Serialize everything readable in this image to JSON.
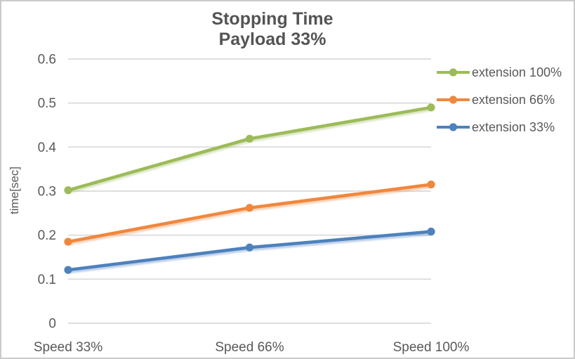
{
  "chart_data": {
    "type": "line",
    "title": "Stopping Time",
    "subtitle": "Payload 33%",
    "ylabel": "time[sec]",
    "xlabel": "",
    "categories": [
      "Speed 33%",
      "Speed 66%",
      "Speed 100%"
    ],
    "series": [
      {
        "name": "extension 100%",
        "color": "#9CBB59",
        "values": [
          0.302,
          0.419,
          0.49
        ]
      },
      {
        "name": "extension 66%",
        "color": "#F0873D",
        "values": [
          0.185,
          0.262,
          0.315
        ]
      },
      {
        "name": "extension 33%",
        "color": "#4E81BD",
        "values": [
          0.121,
          0.172,
          0.208
        ]
      }
    ],
    "ylim": [
      0,
      0.6
    ],
    "yticks": [
      0,
      0.1,
      0.2,
      0.3,
      0.4,
      0.5,
      0.6
    ],
    "grid": "horizontal",
    "legend_position": "right"
  },
  "colors": {
    "title_text": "#545454",
    "axis_text": "#595959",
    "gridline": "#D9D9D9",
    "background": "#FFFFFF",
    "border": "#CBCBCB"
  }
}
